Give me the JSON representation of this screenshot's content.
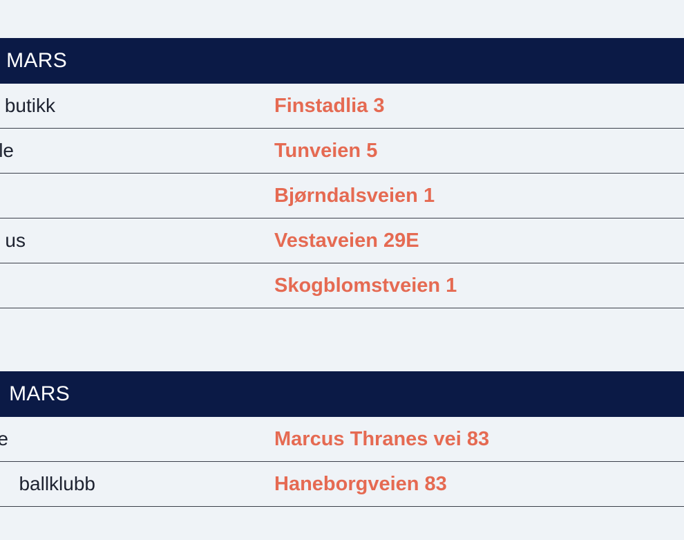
{
  "sections": [
    {
      "title": "MARS",
      "rows": [
        {
          "name": "butikk",
          "address": "Finstadlia 3"
        },
        {
          "name": "le",
          "address": "Tunveien 5"
        },
        {
          "name": "",
          "address": "Bjørndalsveien 1"
        },
        {
          "name": "us",
          "address": "Vestaveien 29E"
        },
        {
          "name": "",
          "address": "Skogblomstveien 1"
        }
      ]
    },
    {
      "title": "MARS",
      "rows": [
        {
          "name": "e",
          "address": "Marcus Thranes vei 83"
        },
        {
          "name": "ballklubb",
          "address": "Haneborgveien 83"
        }
      ]
    }
  ],
  "colors": {
    "header_bg": "#0b1a46",
    "address": "#e56a52",
    "background": "#eff3f7"
  }
}
